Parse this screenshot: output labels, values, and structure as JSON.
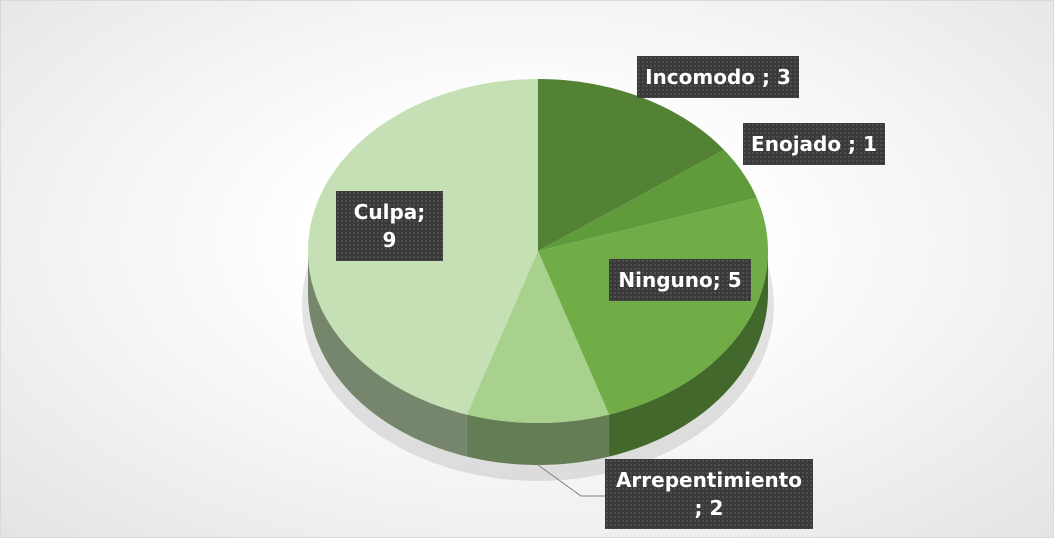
{
  "chart_data": {
    "type": "pie",
    "values": [
      3,
      1,
      5,
      2,
      9
    ],
    "value_labels": [
      "Incomodo ; 3",
      "Enojado ; 1",
      "Ninguno; 5",
      "Arrepentimiento ; 2",
      "Culpa; 9"
    ],
    "colors": [
      "#548235",
      "#609b3b",
      "#70ad47",
      "#a9d18e",
      "#c5e0b4"
    ],
    "start_angle": 0,
    "direction": "clockwise",
    "three_d": true
  }
}
